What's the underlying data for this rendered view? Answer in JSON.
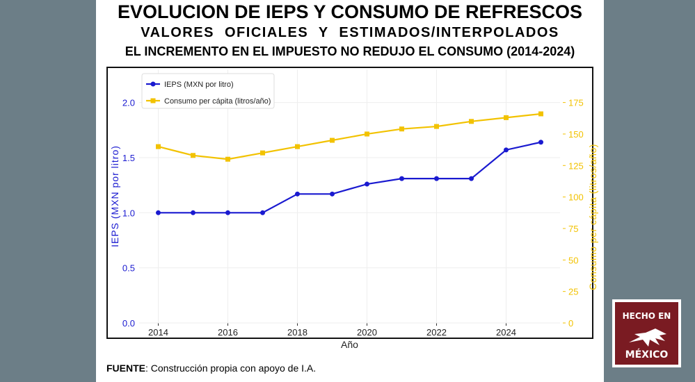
{
  "header": {
    "title": "EVOLUCION DE IEPS Y CONSUMO DE REFRESCOS",
    "subtitle": "VALORES OFICIALES Y ESTIMADOS/INTERPOLADOS",
    "subtitle2": "EL INCREMENTO EN EL IMPUESTO NO REDUJO EL CONSUMO (2014-2024)"
  },
  "footer": {
    "source_label": "FUENTE",
    "source_text": ": Construcción propia con apoyo de I.A."
  },
  "logo": {
    "top": "HECHO EN",
    "bottom": "MÉXICO"
  },
  "chart_data": {
    "type": "line",
    "xlabel": "Año",
    "ylabel": "IEPS (MXN por litro)",
    "y2label": "Consumo per cápita (litros/año)",
    "x": [
      2014,
      2015,
      2016,
      2017,
      2018,
      2019,
      2020,
      2021,
      2022,
      2023,
      2024,
      2025
    ],
    "xticks": [
      2014,
      2016,
      2018,
      2020,
      2022,
      2024
    ],
    "yticks": [
      0.0,
      0.5,
      1.0,
      1.5,
      2.0
    ],
    "y2ticks": [
      0,
      25,
      50,
      75,
      100,
      125,
      150,
      175
    ],
    "xlim": [
      2013.45,
      2025.55
    ],
    "ylim": [
      0,
      2.3
    ],
    "y2lim": [
      0,
      201.25
    ],
    "grid": true,
    "legend": "top-left",
    "series": [
      {
        "name": "IEPS (MXN por litro)",
        "axis": "left",
        "color": "#1a1ad0",
        "marker": "circle",
        "values": [
          1.0,
          1.0,
          1.0,
          1.0,
          1.17,
          1.17,
          1.26,
          1.31,
          1.31,
          1.31,
          1.57,
          1.64
        ]
      },
      {
        "name": "Consumo per cápita (litros/año)",
        "axis": "right",
        "color": "#f2c200",
        "marker": "square",
        "values": [
          140,
          133,
          130,
          135,
          140,
          145,
          150,
          154,
          156,
          160,
          163,
          166
        ]
      }
    ]
  }
}
